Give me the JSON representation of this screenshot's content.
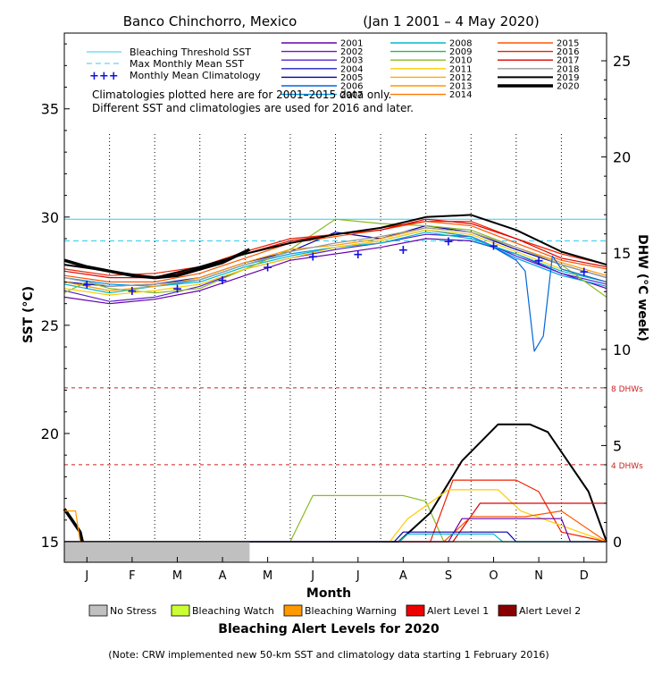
{
  "chart_data": {
    "type": "line",
    "title": "Banco Chinchorro, Mexico",
    "date_range": "(Jan 1 2001 – 4 May 2020)",
    "xlabel": "Month",
    "ylabel_left": "SST (°C)",
    "ylabel_right": "DHW (°C week)",
    "x_ticks": [
      "J",
      "F",
      "M",
      "A",
      "M",
      "J",
      "J",
      "A",
      "S",
      "O",
      "N",
      "D"
    ],
    "y_ticks_left": [
      "15",
      "20",
      "25",
      "30",
      "35"
    ],
    "y_ticks_right": [
      "0",
      "5",
      "10",
      "15",
      "20",
      "25"
    ],
    "ylim_left": [
      15,
      38.5
    ],
    "ylim_right": [
      0,
      25
    ],
    "grid": "dotted vertical lines between months (upper panel)",
    "bleaching_threshold_sst": 29.9,
    "max_monthly_mean_sst": 28.9,
    "dhw_reference_lines": [
      {
        "label": "8 DHWs",
        "value": 8
      },
      {
        "label": "4 DHWs",
        "value": 4
      }
    ],
    "notes": [
      "Climatologies plotted here are for 2001–2015 data only.",
      "Different SST and climatologies are used for 2016 and later."
    ],
    "legend_reference": [
      {
        "name": "Bleaching Threshold SST",
        "color": "#33ccee",
        "style": "solid"
      },
      {
        "name": "Max Monthly Mean SST",
        "color": "#33ccee",
        "style": "dashed"
      },
      {
        "name": "Monthly Mean Climatology",
        "color": "#1111dd",
        "style": "plus"
      }
    ],
    "legend_years": [
      {
        "name": "2001",
        "color": "#6600aa"
      },
      {
        "name": "2002",
        "color": "#7711cc"
      },
      {
        "name": "2003",
        "color": "#5522cc"
      },
      {
        "name": "2004",
        "color": "#2222bb"
      },
      {
        "name": "2005",
        "color": "#0000aa"
      },
      {
        "name": "2006",
        "color": "#0066dd"
      },
      {
        "name": "2007",
        "color": "#0099ee"
      },
      {
        "name": "2008",
        "color": "#00bbcc"
      },
      {
        "name": "2009",
        "color": "#22bb55"
      },
      {
        "name": "2010",
        "color": "#88bb22"
      },
      {
        "name": "2011",
        "color": "#ffcc00"
      },
      {
        "name": "2012",
        "color": "#ffaa00"
      },
      {
        "name": "2013",
        "color": "#ff9900"
      },
      {
        "name": "2014",
        "color": "#ff7700"
      },
      {
        "name": "2015",
        "color": "#ff5500"
      },
      {
        "name": "2016",
        "color": "#ee2200"
      },
      {
        "name": "2017",
        "color": "#dd0000"
      },
      {
        "name": "2018",
        "color": "#999999"
      },
      {
        "name": "2019",
        "color": "#000000"
      },
      {
        "name": "2020",
        "color": "#000000"
      }
    ],
    "monthly_mean_climatology": [
      {
        "x": 0.5,
        "y": 26.9
      },
      {
        "x": 1.5,
        "y": 26.6
      },
      {
        "x": 2.5,
        "y": 26.7
      },
      {
        "x": 3.5,
        "y": 27.1
      },
      {
        "x": 4.5,
        "y": 27.7
      },
      {
        "x": 5.5,
        "y": 28.2
      },
      {
        "x": 6.5,
        "y": 28.3
      },
      {
        "x": 7.5,
        "y": 28.5
      },
      {
        "x": 8.5,
        "y": 28.9
      },
      {
        "x": 9.5,
        "y": 28.7
      },
      {
        "x": 10.5,
        "y": 28.0
      },
      {
        "x": 11.5,
        "y": 27.5
      }
    ],
    "sst_series": [
      {
        "name": "2001",
        "color": "#6600aa",
        "x": [
          0,
          1,
          2,
          3,
          4,
          5,
          6,
          7,
          8,
          9,
          10,
          11,
          12
        ],
        "y": [
          26.3,
          26.0,
          26.2,
          26.6,
          27.3,
          28.0,
          28.3,
          28.6,
          29.0,
          28.9,
          28.3,
          27.4,
          26.7
        ]
      },
      {
        "name": "2003",
        "color": "#5522cc",
        "x": [
          0,
          1,
          2,
          3,
          4,
          5,
          6,
          7,
          8,
          9,
          10,
          11,
          12
        ],
        "y": [
          26.6,
          26.1,
          26.3,
          26.8,
          27.6,
          28.1,
          28.5,
          28.8,
          29.2,
          29.1,
          28.2,
          27.4,
          26.9
        ]
      },
      {
        "name": "2005",
        "color": "#0000aa",
        "x": [
          0,
          1,
          2,
          3,
          4,
          5,
          6,
          7,
          8,
          9,
          10,
          11,
          12
        ],
        "y": [
          27.0,
          26.8,
          26.9,
          27.2,
          27.9,
          28.4,
          29.3,
          29.0,
          29.6,
          29.3,
          28.5,
          27.8,
          27.2
        ]
      },
      {
        "name": "2007",
        "color": "#0099ee",
        "x": [
          0,
          1,
          2,
          3,
          4,
          5,
          6,
          7,
          8,
          9,
          10,
          11,
          12
        ],
        "y": [
          27.2,
          26.9,
          26.8,
          27.1,
          27.8,
          28.3,
          28.6,
          28.9,
          29.4,
          29.1,
          28.1,
          27.3,
          26.8
        ]
      },
      {
        "name": "2008",
        "color": "#00bbcc",
        "x": [
          0,
          1,
          2,
          3,
          4,
          5,
          6,
          7,
          8,
          9,
          10,
          11,
          12
        ],
        "y": [
          26.9,
          26.5,
          26.8,
          27.0,
          27.7,
          28.2,
          28.6,
          28.8,
          29.3,
          29.0,
          28.3,
          27.5,
          27.0
        ]
      },
      {
        "name": "2010",
        "color": "#88bb22",
        "x": [
          0,
          0.5,
          1,
          2,
          3,
          4,
          5,
          6,
          7,
          8,
          9,
          10,
          11,
          12
        ],
        "y": [
          26.5,
          27.0,
          26.7,
          26.5,
          26.7,
          27.6,
          28.5,
          29.9,
          29.7,
          29.6,
          29.4,
          28.6,
          27.8,
          26.3
        ]
      },
      {
        "name": "2011",
        "color": "#ffcc00",
        "x": [
          0,
          1,
          2,
          3,
          4,
          5,
          6,
          7,
          8,
          9,
          10,
          11,
          12
        ],
        "y": [
          26.7,
          26.4,
          26.6,
          26.9,
          27.6,
          28.1,
          28.6,
          28.9,
          29.4,
          29.2,
          28.4,
          27.6,
          27.0
        ]
      },
      {
        "name": "2013",
        "color": "#ff9900",
        "x": [
          0,
          1,
          2,
          3,
          4,
          5,
          6,
          7,
          8,
          9,
          10,
          11,
          12
        ],
        "y": [
          27.0,
          26.6,
          26.8,
          27.2,
          27.9,
          28.5,
          28.7,
          29.0,
          29.5,
          29.3,
          28.6,
          27.9,
          27.3
        ]
      },
      {
        "name": "2015",
        "color": "#ff5500",
        "x": [
          0,
          1,
          2,
          3,
          4,
          5,
          6,
          7,
          8,
          9,
          10,
          11,
          12
        ],
        "y": [
          27.3,
          27.0,
          27.0,
          27.4,
          28.1,
          28.8,
          29.1,
          29.4,
          29.8,
          29.6,
          28.8,
          28.0,
          27.6
        ]
      },
      {
        "name": "2016",
        "color": "#ee2200",
        "x": [
          0,
          1,
          2,
          3,
          4,
          5,
          6,
          7,
          8,
          9,
          10,
          11,
          12
        ],
        "y": [
          27.6,
          27.3,
          27.4,
          27.7,
          28.4,
          29.0,
          29.2,
          29.5,
          29.8,
          29.8,
          29.0,
          28.3,
          27.8
        ]
      },
      {
        "name": "2017",
        "color": "#dd0000",
        "x": [
          0,
          1,
          2,
          3,
          4,
          5,
          6,
          7,
          8,
          9,
          10,
          11,
          12
        ],
        "y": [
          27.5,
          27.2,
          27.2,
          27.6,
          28.3,
          28.9,
          29.2,
          29.4,
          29.9,
          29.7,
          29.0,
          28.1,
          27.7
        ]
      },
      {
        "name": "2018",
        "color": "#999999",
        "x": [
          0,
          1,
          2,
          3,
          4,
          5,
          6,
          7,
          8,
          9,
          10,
          11,
          12
        ],
        "y": [
          27.2,
          26.8,
          26.9,
          27.1,
          27.8,
          28.4,
          28.8,
          29.1,
          29.5,
          29.3,
          28.6,
          27.8,
          27.2
        ]
      },
      {
        "name": "2019",
        "color": "#000000",
        "x": [
          0,
          1,
          2,
          3,
          4,
          5,
          6,
          7,
          8,
          9,
          10,
          11,
          12
        ],
        "y": [
          27.8,
          27.5,
          27.2,
          27.7,
          28.3,
          28.8,
          29.2,
          29.5,
          30.0,
          30.1,
          29.4,
          28.4,
          27.8
        ]
      },
      {
        "name": "2020",
        "color": "#000000",
        "x": [
          0,
          0.5,
          1,
          1.5,
          2,
          2.5,
          3,
          3.5,
          4.1
        ],
        "y": [
          28.0,
          27.7,
          27.5,
          27.3,
          27.2,
          27.3,
          27.6,
          27.9,
          28.5
        ]
      },
      {
        "name": "2006",
        "color": "#0066dd",
        "x": [
          9,
          9.5,
          10,
          10.2,
          10.4,
          10.6,
          10.8,
          11,
          12
        ],
        "y": [
          28.9,
          28.6,
          28.0,
          27.5,
          23.8,
          24.5,
          28.2,
          27.6,
          27.0
        ]
      }
    ],
    "dhw_series": [
      {
        "name": "2010",
        "color": "#88bb22",
        "x": [
          0,
          5.0,
          5.5,
          7.5,
          8.0,
          8.4,
          12
        ],
        "y": [
          0,
          0,
          2.4,
          2.4,
          2.1,
          0,
          0
        ]
      },
      {
        "name": "2019",
        "color": "#000000",
        "x": [
          0,
          7.0,
          7.4,
          8.1,
          8.8,
          9.6,
          10.3,
          10.7,
          11.6,
          12
        ],
        "y": [
          0,
          0,
          0,
          1.5,
          4.2,
          6.1,
          6.1,
          5.7,
          2.6,
          0
        ]
      },
      {
        "name": "2016",
        "color": "#ee2200",
        "x": [
          0,
          7.5,
          8.1,
          8.6,
          10.0,
          10.5,
          11.0,
          12
        ],
        "y": [
          0,
          0,
          0,
          3.2,
          3.2,
          2.6,
          0.5,
          0
        ]
      },
      {
        "name": "2011",
        "color": "#ffcc00",
        "x": [
          0,
          7.2,
          7.6,
          8.5,
          9.6,
          10.1,
          12
        ],
        "y": [
          0,
          0,
          1.2,
          2.7,
          2.7,
          1.6,
          0
        ]
      },
      {
        "name": "2017",
        "color": "#dd0000",
        "x": [
          0,
          8.6,
          9.2,
          10.4,
          12
        ],
        "y": [
          0,
          0,
          2.0,
          2.0,
          2.0
        ]
      },
      {
        "name": "2015",
        "color": "#ff5500",
        "x": [
          0,
          8.4,
          9.0,
          10.2,
          11.0,
          12
        ],
        "y": [
          0,
          0,
          1.3,
          1.3,
          1.6,
          0
        ]
      },
      {
        "name": "2001",
        "color": "#6600aa",
        "x": [
          0,
          8.5,
          8.8,
          11.0,
          11.2,
          12
        ],
        "y": [
          0,
          0,
          1.2,
          1.2,
          0,
          0
        ]
      },
      {
        "name": "2005",
        "color": "#0000aa",
        "x": [
          0,
          7.3,
          7.5,
          9.8,
          10.0,
          12
        ],
        "y": [
          0,
          0,
          0.5,
          0.5,
          0,
          0
        ]
      },
      {
        "name": "2008",
        "color": "#00bbcc",
        "x": [
          0,
          7.4,
          7.6,
          9.5,
          9.7,
          12
        ],
        "y": [
          0,
          0,
          0.4,
          0.4,
          0,
          0
        ]
      },
      {
        "name": "2020",
        "color": "#000000",
        "x": [
          0,
          0.15,
          0.35,
          0.4
        ],
        "y": [
          1.7,
          1.2,
          0.5,
          0
        ]
      },
      {
        "name": "2013",
        "color": "#ff9900",
        "x": [
          0,
          0.25,
          0.35
        ],
        "y": [
          1.6,
          1.6,
          0
        ]
      }
    ],
    "status_bar": [
      {
        "x0": 0,
        "x1": 4.1,
        "level": "No Stress"
      }
    ],
    "alert_legend": [
      {
        "label": "No Stress",
        "color": "#c0c0c0"
      },
      {
        "label": "Bleaching Watch",
        "color": "#ccff33"
      },
      {
        "label": "Bleaching Warning",
        "color": "#ff9900"
      },
      {
        "label": "Alert Level 1",
        "color": "#ee0000"
      },
      {
        "label": "Alert Level 2",
        "color": "#880000"
      }
    ],
    "alert_title": "Bleaching Alert Levels for 2020",
    "footnote": "(Note: CRW implemented new 50-km SST and climatology data starting 1 February 2016)"
  }
}
